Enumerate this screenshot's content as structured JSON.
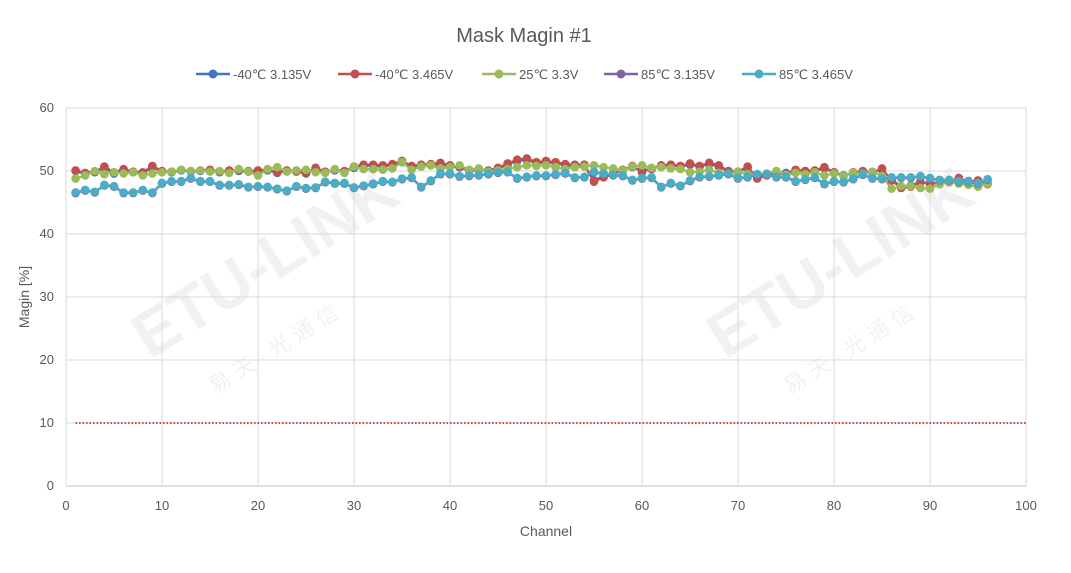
{
  "chart_data": {
    "type": "line",
    "title": "Mask Magin #1",
    "xlabel": "Channel",
    "ylabel": "Magin [%]",
    "xlim": [
      0,
      100
    ],
    "ylim": [
      0,
      60
    ],
    "x_ticks": [
      0,
      10,
      20,
      30,
      40,
      50,
      60,
      70,
      80,
      90,
      100
    ],
    "y_ticks": [
      0,
      10,
      20,
      30,
      40,
      50,
      60
    ],
    "grid": true,
    "legend_position": "top",
    "reference_line": {
      "y": 10,
      "color": "#C00000",
      "style": "dotted"
    },
    "x": [
      1,
      2,
      3,
      4,
      5,
      6,
      7,
      8,
      9,
      10,
      11,
      12,
      13,
      14,
      15,
      16,
      17,
      18,
      19,
      20,
      21,
      22,
      23,
      24,
      25,
      26,
      27,
      28,
      29,
      30,
      31,
      32,
      33,
      34,
      35,
      36,
      37,
      38,
      39,
      40,
      41,
      42,
      43,
      44,
      45,
      46,
      47,
      48,
      49,
      50,
      51,
      52,
      53,
      54,
      55,
      56,
      57,
      58,
      59,
      60,
      61,
      62,
      63,
      64,
      65,
      66,
      67,
      68,
      69,
      70,
      71,
      72,
      73,
      74,
      75,
      76,
      77,
      78,
      79,
      80,
      81,
      82,
      83,
      84,
      85,
      86,
      87,
      88,
      89,
      90,
      91,
      92,
      93,
      94,
      95,
      96
    ],
    "series": [
      {
        "name": "-40℃ 3.135V",
        "color": "#4472C4",
        "values": [
          50.0,
          49.5,
          49.8,
          50.5,
          49.6,
          50.2,
          49.8,
          49.6,
          50.6,
          49.9,
          49.8,
          50.1,
          49.9,
          50.0,
          50.1,
          49.8,
          50.0,
          50.0,
          49.9,
          50.0,
          50.1,
          49.7,
          50.0,
          49.9,
          49.6,
          50.3,
          49.8,
          50.1,
          49.9,
          50.5,
          50.8,
          50.8,
          50.7,
          50.9,
          51.4,
          50.6,
          50.8,
          50.9,
          51.1,
          50.7,
          50.6,
          50.0,
          50.2,
          50.0,
          50.4,
          51.0,
          51.6,
          51.8,
          51.2,
          51.4,
          51.2,
          50.9,
          50.8,
          50.8,
          48.5,
          49.2,
          49.6,
          50.1,
          50.6,
          50.1,
          50.3,
          50.8,
          50.9,
          50.7,
          51.0,
          50.7,
          51.1,
          50.7,
          49.9,
          49.8,
          50.5,
          49.0,
          49.5,
          49.7,
          49.7,
          50.1,
          50.0,
          50.0,
          50.4,
          49.8,
          49.3,
          49.6,
          49.9,
          49.8,
          50.2,
          48.7,
          47.5,
          47.7,
          48.3,
          48.0,
          48.2,
          48.3,
          48.7,
          48.4,
          48.4,
          48.0
        ]
      },
      {
        "name": "-40℃ 3.465V",
        "color": "#C0504D",
        "values": [
          50.1,
          49.7,
          49.9,
          50.7,
          49.8,
          50.3,
          49.9,
          49.8,
          50.8,
          50.0,
          49.9,
          50.2,
          50.0,
          50.1,
          50.2,
          49.9,
          50.1,
          50.1,
          50.0,
          50.1,
          50.2,
          49.8,
          50.1,
          50.0,
          49.7,
          50.5,
          49.9,
          50.2,
          50.0,
          50.7,
          51.0,
          51.0,
          50.9,
          51.1,
          51.6,
          50.8,
          51.0,
          51.1,
          51.3,
          50.9,
          50.7,
          50.1,
          50.3,
          50.1,
          50.5,
          51.2,
          51.8,
          52.0,
          51.4,
          51.6,
          51.4,
          51.1,
          51.0,
          51.0,
          48.3,
          49.0,
          49.5,
          50.2,
          50.8,
          49.8,
          50.4,
          50.9,
          51.0,
          50.8,
          51.2,
          50.8,
          51.3,
          50.9,
          50.0,
          49.9,
          50.7,
          48.8,
          49.3,
          49.6,
          49.5,
          50.2,
          50.0,
          50.1,
          50.6,
          49.8,
          49.2,
          49.8,
          50.0,
          49.8,
          50.4,
          48.5,
          47.3,
          47.5,
          48.2,
          48.0,
          48.1,
          48.3,
          48.9,
          48.2,
          48.5,
          47.9
        ]
      },
      {
        "name": "25℃ 3.3V",
        "color": "#9BBB59",
        "values": [
          48.8,
          49.3,
          50.0,
          49.5,
          49.8,
          49.6,
          49.8,
          49.3,
          49.6,
          49.8,
          49.9,
          50.2,
          50.0,
          50.1,
          49.9,
          50.0,
          49.7,
          50.3,
          49.9,
          49.3,
          50.3,
          50.6,
          49.9,
          50.1,
          50.2,
          49.8,
          49.7,
          50.3,
          49.7,
          50.7,
          50.3,
          50.3,
          50.2,
          50.4,
          51.4,
          50.2,
          50.7,
          50.9,
          50.4,
          50.6,
          50.9,
          50.2,
          50.4,
          49.9,
          50.1,
          50.3,
          50.6,
          50.9,
          50.8,
          50.9,
          50.6,
          50.3,
          50.6,
          50.7,
          50.9,
          50.6,
          50.4,
          50.1,
          50.7,
          50.9,
          50.5,
          50.6,
          50.4,
          50.3,
          49.8,
          49.9,
          50.2,
          49.7,
          49.6,
          49.9,
          49.5,
          49.5,
          49.6,
          50.0,
          49.4,
          49.7,
          49.5,
          49.8,
          49.3,
          49.6,
          49.2,
          49.7,
          49.6,
          49.9,
          49.2,
          47.2,
          47.6,
          47.6,
          47.3,
          47.2,
          47.9,
          48.2,
          48.0,
          47.8,
          47.5,
          48.0
        ]
      },
      {
        "name": "85℃ 3.135V",
        "color": "#8064A2",
        "values": [
          46.5,
          46.9,
          46.6,
          47.7,
          47.5,
          46.5,
          46.5,
          46.9,
          46.5,
          48.0,
          48.3,
          48.3,
          48.8,
          48.3,
          48.3,
          47.7,
          47.7,
          47.8,
          47.4,
          47.5,
          47.4,
          47.1,
          46.8,
          47.5,
          47.2,
          47.3,
          48.2,
          48.0,
          48.0,
          47.3,
          47.6,
          47.9,
          48.3,
          48.2,
          48.7,
          48.9,
          47.4,
          48.4,
          49.5,
          49.5,
          49.1,
          49.2,
          49.3,
          49.5,
          49.7,
          49.8,
          48.8,
          49.0,
          49.2,
          49.2,
          49.4,
          49.6,
          48.9,
          49.0,
          49.8,
          49.5,
          49.3,
          49.2,
          48.5,
          48.8,
          48.9,
          47.4,
          48.0,
          47.6,
          48.4,
          49.0,
          49.1,
          49.3,
          49.5,
          48.8,
          49.0,
          49.4,
          49.4,
          49.0,
          49.0,
          48.3,
          48.6,
          48.9,
          47.9,
          48.3,
          48.2,
          48.7,
          49.4,
          48.8,
          48.7,
          48.9,
          48.9,
          48.9,
          49.1,
          48.8,
          48.5,
          48.5,
          48.3,
          48.2,
          48.0,
          48.6
        ]
      },
      {
        "name": "85℃ 3.465V",
        "color": "#4BACC6",
        "values": [
          46.6,
          47.0,
          46.7,
          47.8,
          47.6,
          46.6,
          46.6,
          47.0,
          46.6,
          48.1,
          48.4,
          48.4,
          48.9,
          48.4,
          48.4,
          47.8,
          47.8,
          47.9,
          47.5,
          47.6,
          47.5,
          47.2,
          46.9,
          47.6,
          47.3,
          47.4,
          48.3,
          48.1,
          48.1,
          47.4,
          47.7,
          48.0,
          48.4,
          48.3,
          48.8,
          49.0,
          47.5,
          48.5,
          49.6,
          49.6,
          49.2,
          49.3,
          49.4,
          49.6,
          49.8,
          49.9,
          48.9,
          49.1,
          49.3,
          49.3,
          49.5,
          49.7,
          49.0,
          49.1,
          49.9,
          49.6,
          49.4,
          49.3,
          48.6,
          48.9,
          49.0,
          47.5,
          48.1,
          47.7,
          48.5,
          49.1,
          49.2,
          49.4,
          49.6,
          48.9,
          49.1,
          49.5,
          49.5,
          49.1,
          49.1,
          48.4,
          48.7,
          49.0,
          48.0,
          48.4,
          48.3,
          48.8,
          49.5,
          48.9,
          48.8,
          49.0,
          49.0,
          49.0,
          49.2,
          48.9,
          48.6,
          48.6,
          48.4,
          48.3,
          48.1,
          48.7
        ]
      }
    ]
  }
}
